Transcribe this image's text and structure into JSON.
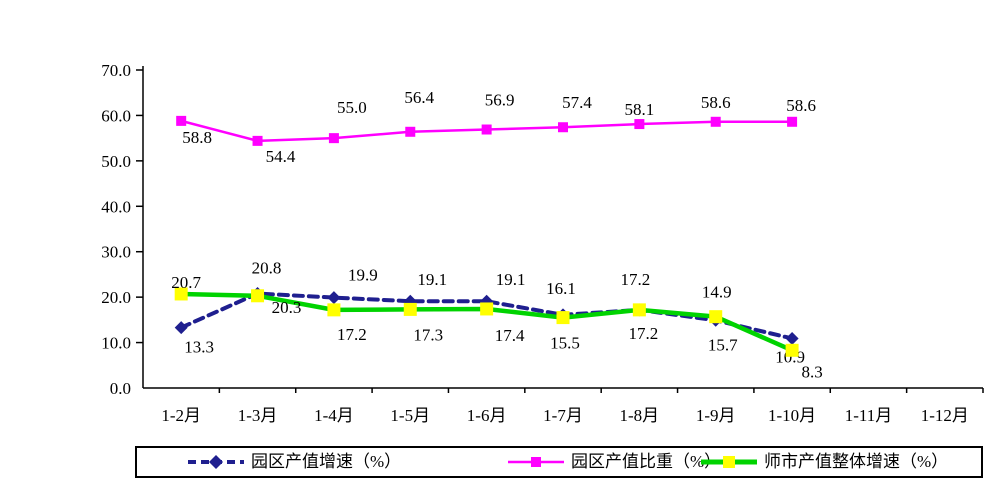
{
  "chart_data": {
    "type": "line",
    "title": "",
    "grid": false,
    "legend_position": "bottom",
    "categories": [
      "1-2月",
      "1-3月",
      "1-4月",
      "1-5月",
      "1-6月",
      "1-7月",
      "1-8月",
      "1-9月",
      "1-10月",
      "1-11月",
      "1-12月"
    ],
    "y_axis": {
      "min": 0,
      "max": 70,
      "step": 10,
      "tick_values": [
        70,
        60,
        50,
        40,
        30,
        20,
        10,
        0
      ],
      "tick_labels": [
        "70.0",
        "60.0",
        "50.0",
        "40.0",
        "30.0",
        "20.0",
        "10.0",
        "0.0"
      ]
    },
    "series": [
      {
        "name": "园区产值增速（%）",
        "color": "#1f1f8f",
        "marker": "diamond",
        "marker_color": "#1f1f8f",
        "marker_size": 13,
        "line_style": "dashed",
        "line_width": 4,
        "values": [
          13.3,
          20.8,
          19.9,
          19.1,
          19.1,
          16.1,
          17.2,
          14.9,
          10.9
        ],
        "labels": [
          "13.3",
          "20.8",
          "19.9",
          "19.1",
          "19.1",
          "16.1",
          "17.2",
          "14.9",
          "10.9"
        ],
        "label_offsets": [
          [
            18,
            19
          ],
          [
            9,
            -26
          ],
          [
            29,
            -23
          ],
          [
            22,
            -22
          ],
          [
            24,
            -22
          ],
          [
            -2,
            -27
          ],
          [
            -4,
            -31
          ],
          [
            1,
            -29
          ],
          [
            -2,
            18
          ]
        ]
      },
      {
        "name": "园区产值比重（%）",
        "color": "#ff00ff",
        "marker": "square",
        "marker_color": "#ff00ff",
        "marker_size": 10,
        "line_style": "solid",
        "line_width": 2.5,
        "values": [
          58.8,
          54.4,
          55.0,
          56.4,
          56.9,
          57.4,
          58.1,
          58.6,
          58.6
        ],
        "labels": [
          "58.8",
          "54.4",
          "55.0",
          "56.4",
          "56.9",
          "57.4",
          "58.1",
          "58.6",
          "58.6"
        ],
        "label_offsets": [
          [
            16,
            16
          ],
          [
            23,
            15
          ],
          [
            18,
            -31
          ],
          [
            9,
            -35
          ],
          [
            13,
            -30
          ],
          [
            14,
            -25
          ],
          [
            0,
            -15
          ],
          [
            0,
            -20
          ],
          [
            9,
            -17
          ]
        ]
      },
      {
        "name": "师市产值整体增速（%）",
        "color": "#00d300",
        "marker": "square",
        "marker_color": "#ffff00",
        "marker_size": 13,
        "line_style": "solid",
        "line_width": 4.5,
        "values": [
          20.7,
          20.3,
          17.2,
          17.3,
          17.4,
          15.5,
          17.2,
          15.7,
          8.3
        ],
        "labels": [
          "20.7",
          "20.3",
          "17.2",
          "17.3",
          "17.4",
          "15.5",
          "17.2",
          "15.7",
          "8.3"
        ],
        "label_offsets": [
          [
            5,
            -12
          ],
          [
            29,
            11
          ],
          [
            18,
            24
          ],
          [
            18,
            25
          ],
          [
            23,
            26
          ],
          [
            2,
            25
          ],
          [
            4,
            23
          ],
          [
            7,
            28
          ],
          [
            20,
            21
          ]
        ]
      }
    ],
    "axis_color": "#000000",
    "text_color": "#000000",
    "font_size_axis": 17,
    "font_size_labels": 17
  },
  "legend": {
    "item_lefts": [
      50,
      370,
      563
    ]
  }
}
